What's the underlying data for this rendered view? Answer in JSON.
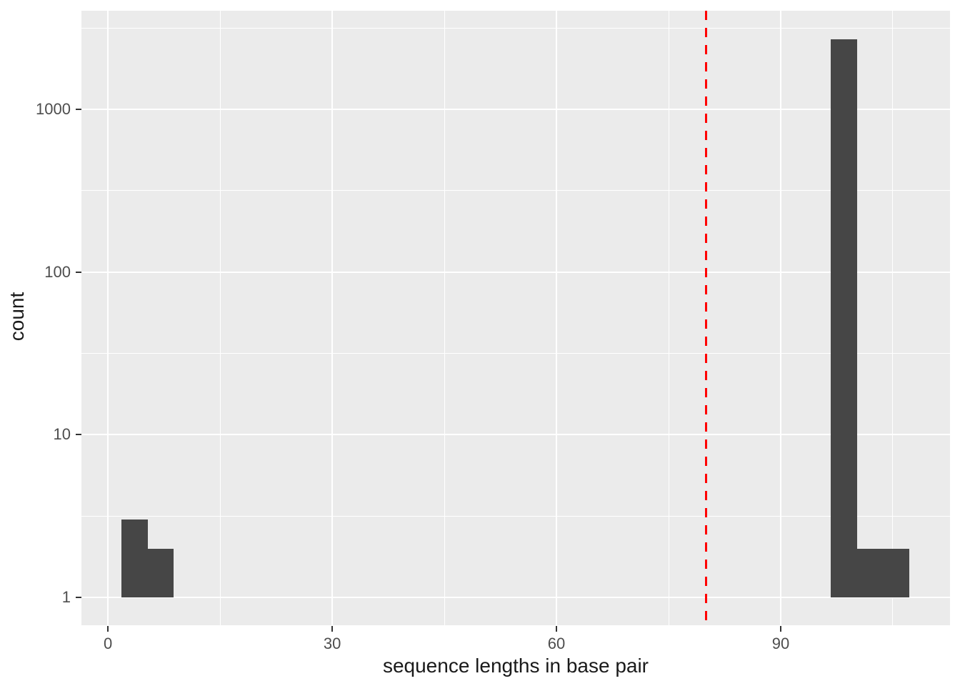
{
  "chart_data": {
    "type": "bar",
    "subtype": "histogram",
    "title": "",
    "xlabel": "sequence lengths in base pair",
    "ylabel": "count",
    "x_scale": "linear",
    "y_scale": "log10",
    "x_domain": [
      -3.55,
      112.65
    ],
    "y_log10_domain": [
      -0.171,
      3.606
    ],
    "x_ticks": [
      0,
      30,
      60,
      90
    ],
    "y_ticks": [
      1,
      10,
      100,
      1000
    ],
    "x_minor_gridlines": [
      15,
      45,
      75,
      105
    ],
    "y_minor_gridlines": [
      3.162,
      31.62,
      316.2,
      3162
    ],
    "grid": true,
    "legend_position": "none",
    "bins": [
      {
        "x_start": 1.8,
        "x_end": 5.3,
        "count": 3
      },
      {
        "x_start": 5.3,
        "x_end": 8.8,
        "count": 2
      },
      {
        "x_start": 96.7,
        "x_end": 100.2,
        "count": 2700
      },
      {
        "x_start": 100.2,
        "x_end": 103.7,
        "count": 2
      },
      {
        "x_start": 103.7,
        "x_end": 107.2,
        "count": 2
      }
    ],
    "vline": {
      "x": 80,
      "style": "dashed",
      "color": "#FF0000"
    },
    "colors": {
      "bar_fill": "#464646",
      "panel_background": "#EBEBEB",
      "gridline": "#FFFFFF",
      "tick_mark": "#333333",
      "tick_label": "#4D4D4D",
      "axis_title": "#1A1A1A",
      "figure_background": "#FFFFFF"
    }
  }
}
